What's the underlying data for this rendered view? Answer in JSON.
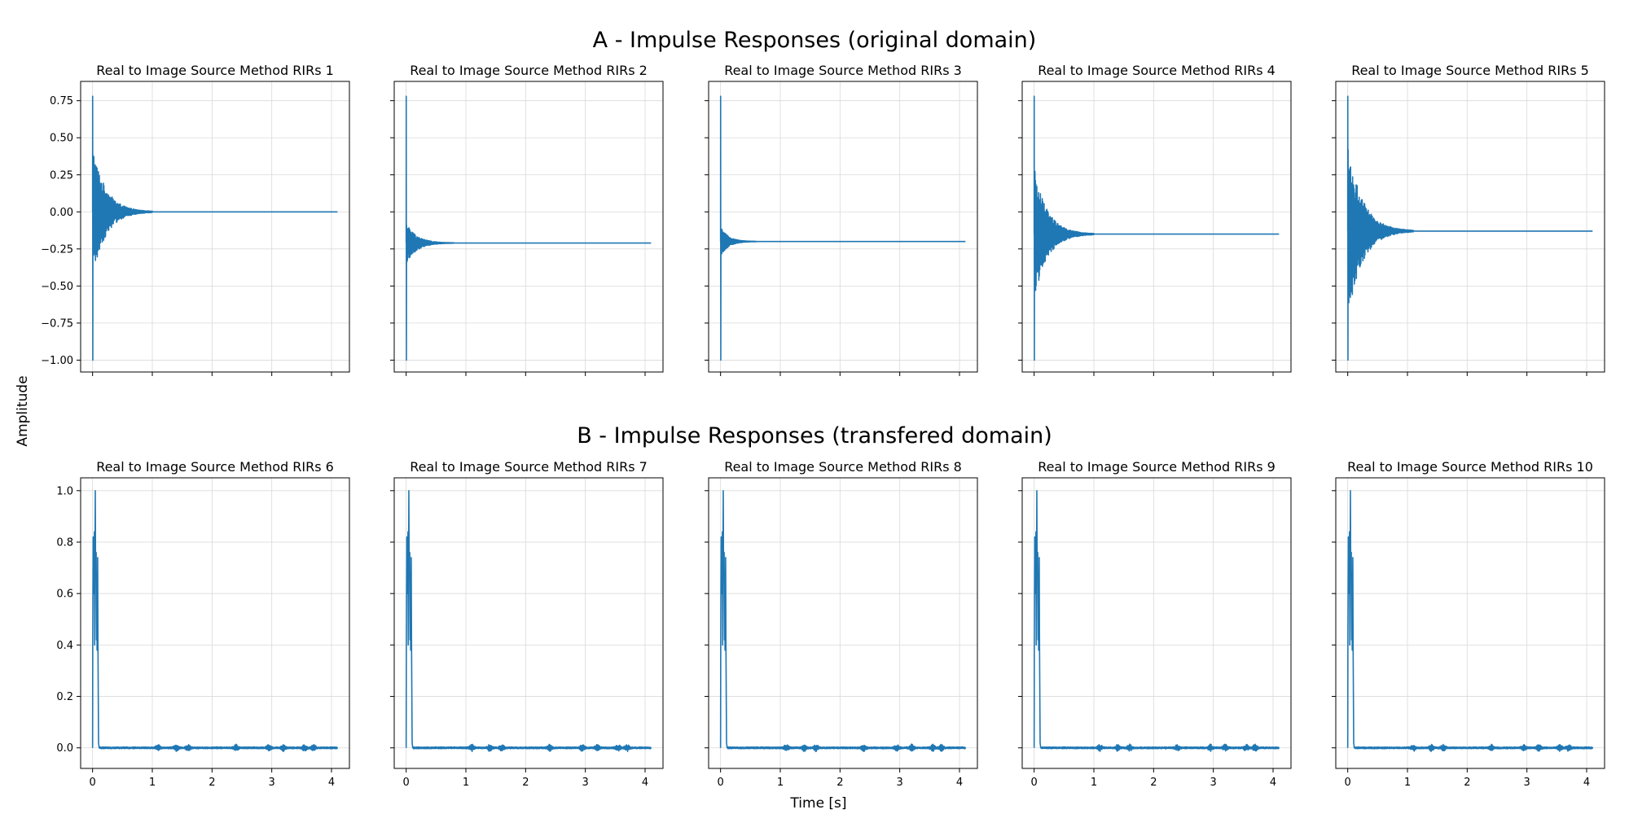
{
  "figure": {
    "row_titles": [
      "A - Impulse Responses (original domain)",
      "B - Impulse Responses (transfered domain)"
    ],
    "xlabel": "Time [s]",
    "ylabel": "Amplitude"
  },
  "chart_data": [
    {
      "type": "line",
      "row": 0,
      "title": "Real to Image Source Method RIRs 1",
      "xlim": [
        -0.2,
        4.3
      ],
      "ylim": [
        -1.08,
        0.88
      ],
      "yticks": [
        -1.0,
        -0.75,
        -0.5,
        -0.25,
        0.0,
        0.25,
        0.5,
        0.75
      ],
      "ytick_labels": [
        "−1.00",
        "−0.75",
        "−0.50",
        "−0.25",
        "0.00",
        "0.25",
        "0.50",
        "0.75"
      ],
      "xticks": [
        0,
        1,
        2,
        3,
        4
      ],
      "xtick_labels": [
        "",
        "",
        "",
        "",
        ""
      ],
      "grid": true,
      "color": "#1f77b4",
      "signal": {
        "kind": "decay",
        "start": 0.0,
        "peak_pos": 0.78,
        "peak_neg": -1.0,
        "env_start": 0.45,
        "decay_end": 1.0,
        "end": 4.1,
        "baseline": 0.0
      }
    },
    {
      "type": "line",
      "row": 0,
      "title": "Real to Image Source Method RIRs 2",
      "xlim": [
        -0.2,
        4.3
      ],
      "ylim": [
        -1.08,
        0.88
      ],
      "yticks": [
        -1.0,
        -0.75,
        -0.5,
        -0.25,
        0.0,
        0.25,
        0.5,
        0.75
      ],
      "ytick_labels": [
        "",
        "",
        "",
        "",
        "",
        "",
        "",
        ""
      ],
      "xticks": [
        0,
        1,
        2,
        3,
        4
      ],
      "xtick_labels": [
        "",
        "",
        "",
        "",
        ""
      ],
      "grid": true,
      "color": "#1f77b4",
      "signal": {
        "kind": "decay",
        "start": 0.0,
        "peak_pos": 0.78,
        "peak_neg": -1.0,
        "env_start": 0.14,
        "decay_end": 0.8,
        "end": 4.1,
        "baseline": -0.21
      }
    },
    {
      "type": "line",
      "row": 0,
      "title": "Real to Image Source Method RIRs 3",
      "xlim": [
        -0.2,
        4.3
      ],
      "ylim": [
        -1.08,
        0.88
      ],
      "yticks": [
        -1.0,
        -0.75,
        -0.5,
        -0.25,
        0.0,
        0.25,
        0.5,
        0.75
      ],
      "ytick_labels": [
        "",
        "",
        "",
        "",
        "",
        "",
        "",
        ""
      ],
      "xticks": [
        0,
        1,
        2,
        3,
        4
      ],
      "xtick_labels": [
        "",
        "",
        "",
        "",
        ""
      ],
      "grid": true,
      "color": "#1f77b4",
      "signal": {
        "kind": "decay",
        "start": 0.0,
        "peak_pos": 0.78,
        "peak_neg": -1.0,
        "env_start": 0.1,
        "decay_end": 0.6,
        "end": 4.1,
        "baseline": -0.2
      }
    },
    {
      "type": "line",
      "row": 0,
      "title": "Real to Image Source Method RIRs 4",
      "xlim": [
        -0.2,
        4.3
      ],
      "ylim": [
        -1.08,
        0.88
      ],
      "yticks": [
        -1.0,
        -0.75,
        -0.5,
        -0.25,
        0.0,
        0.25,
        0.5,
        0.75
      ],
      "ytick_labels": [
        "",
        "",
        "",
        "",
        "",
        "",
        "",
        ""
      ],
      "xticks": [
        0,
        1,
        2,
        3,
        4
      ],
      "xtick_labels": [
        "",
        "",
        "",
        "",
        ""
      ],
      "grid": true,
      "color": "#1f77b4",
      "signal": {
        "kind": "decay",
        "start": 0.0,
        "peak_pos": 0.78,
        "peak_neg": -1.0,
        "env_start": 0.45,
        "decay_end": 1.0,
        "end": 4.1,
        "baseline": -0.15
      }
    },
    {
      "type": "line",
      "row": 0,
      "title": "Real to Image Source Method RIRs 5",
      "xlim": [
        -0.2,
        4.3
      ],
      "ylim": [
        -1.08,
        0.88
      ],
      "yticks": [
        -1.0,
        -0.75,
        -0.5,
        -0.25,
        0.0,
        0.25,
        0.5,
        0.75
      ],
      "ytick_labels": [
        "",
        "",
        "",
        "",
        "",
        "",
        "",
        ""
      ],
      "xticks": [
        0,
        1,
        2,
        3,
        4
      ],
      "xtick_labels": [
        "",
        "",
        "",
        "",
        ""
      ],
      "grid": true,
      "color": "#1f77b4",
      "signal": {
        "kind": "decay",
        "start": 0.0,
        "peak_pos": 0.78,
        "peak_neg": -1.0,
        "env_start": 0.6,
        "decay_end": 1.1,
        "end": 4.1,
        "baseline": -0.13
      }
    },
    {
      "type": "line",
      "row": 1,
      "title": "Real to Image Source Method RIRs 6",
      "xlim": [
        -0.2,
        4.3
      ],
      "ylim": [
        -0.08,
        1.05
      ],
      "yticks": [
        0.0,
        0.2,
        0.4,
        0.6,
        0.8,
        1.0
      ],
      "ytick_labels": [
        "0.0",
        "0.2",
        "0.4",
        "0.6",
        "0.8",
        "1.0"
      ],
      "xticks": [
        0,
        1,
        2,
        3,
        4
      ],
      "xtick_labels": [
        "0",
        "1",
        "2",
        "3",
        "4"
      ],
      "grid": true,
      "color": "#1f77b4",
      "signal": {
        "kind": "envelope",
        "start": 0.0,
        "end": 4.1
      }
    },
    {
      "type": "line",
      "row": 1,
      "title": "Real to Image Source Method RIRs 7",
      "xlim": [
        -0.2,
        4.3
      ],
      "ylim": [
        -0.08,
        1.05
      ],
      "yticks": [
        0.0,
        0.2,
        0.4,
        0.6,
        0.8,
        1.0
      ],
      "ytick_labels": [
        "",
        "",
        "",
        "",
        "",
        ""
      ],
      "xticks": [
        0,
        1,
        2,
        3,
        4
      ],
      "xtick_labels": [
        "0",
        "1",
        "2",
        "3",
        "4"
      ],
      "grid": true,
      "color": "#1f77b4",
      "signal": {
        "kind": "envelope",
        "start": 0.0,
        "end": 4.1
      }
    },
    {
      "type": "line",
      "row": 1,
      "title": "Real to Image Source Method RIRs 8",
      "xlim": [
        -0.2,
        4.3
      ],
      "ylim": [
        -0.08,
        1.05
      ],
      "yticks": [
        0.0,
        0.2,
        0.4,
        0.6,
        0.8,
        1.0
      ],
      "ytick_labels": [
        "",
        "",
        "",
        "",
        "",
        ""
      ],
      "xticks": [
        0,
        1,
        2,
        3,
        4
      ],
      "xtick_labels": [
        "0",
        "1",
        "2",
        "3",
        "4"
      ],
      "grid": true,
      "color": "#1f77b4",
      "signal": {
        "kind": "envelope",
        "start": 0.0,
        "end": 4.1
      }
    },
    {
      "type": "line",
      "row": 1,
      "title": "Real to Image Source Method RIRs 9",
      "xlim": [
        -0.2,
        4.3
      ],
      "ylim": [
        -0.08,
        1.05
      ],
      "yticks": [
        0.0,
        0.2,
        0.4,
        0.6,
        0.8,
        1.0
      ],
      "ytick_labels": [
        "",
        "",
        "",
        "",
        "",
        ""
      ],
      "xticks": [
        0,
        1,
        2,
        3,
        4
      ],
      "xtick_labels": [
        "0",
        "1",
        "2",
        "3",
        "4"
      ],
      "grid": true,
      "color": "#1f77b4",
      "signal": {
        "kind": "envelope",
        "start": 0.0,
        "end": 4.1
      }
    },
    {
      "type": "line",
      "row": 1,
      "title": "Real to Image Source Method RIRs 10",
      "xlim": [
        -0.2,
        4.3
      ],
      "ylim": [
        -0.08,
        1.05
      ],
      "yticks": [
        0.0,
        0.2,
        0.4,
        0.6,
        0.8,
        1.0
      ],
      "ytick_labels": [
        "",
        "",
        "",
        "",
        "",
        ""
      ],
      "xticks": [
        0,
        1,
        2,
        3,
        4
      ],
      "xtick_labels": [
        "0",
        "1",
        "2",
        "3",
        "4"
      ],
      "grid": true,
      "color": "#1f77b4",
      "signal": {
        "kind": "envelope",
        "start": 0.0,
        "end": 4.1
      }
    }
  ]
}
